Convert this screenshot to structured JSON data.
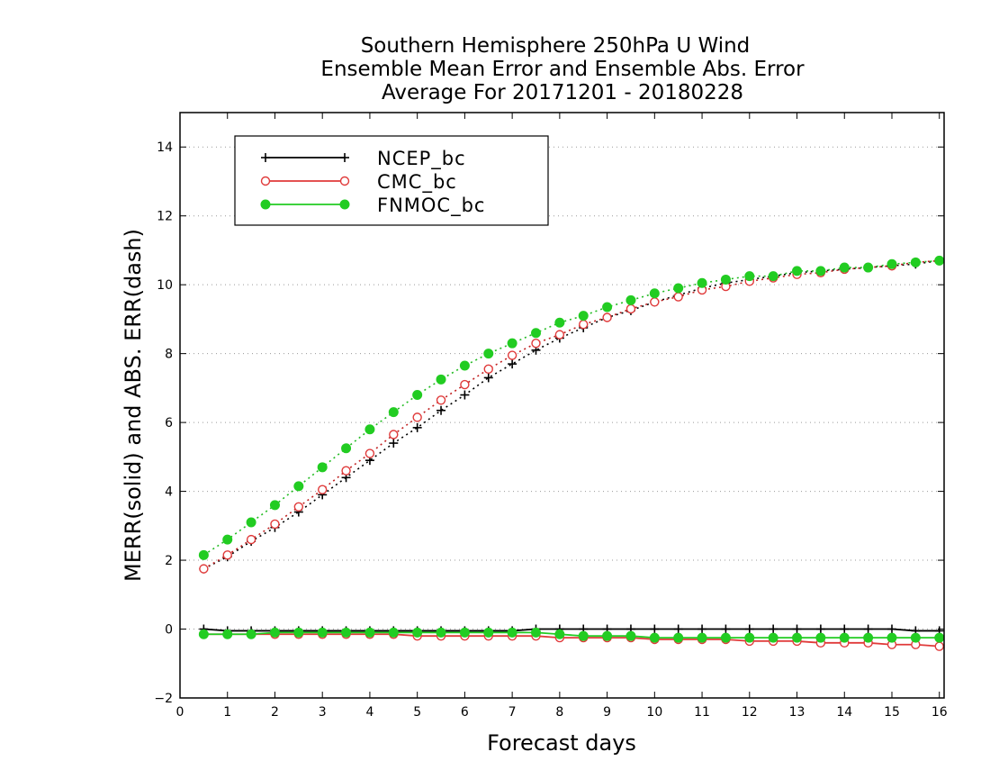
{
  "chart_data": {
    "type": "line",
    "title_lines": [
      "Southern Hemisphere 250hPa U Wind",
      "Ensemble Mean Error and Ensemble Abs. Error",
      "Average For 20171201 - 20180228"
    ],
    "xlabel": "Forecast days",
    "ylabel": "MERR(solid) and ABS. ERR(dash)",
    "xlim": [
      0,
      16.1
    ],
    "ylim": [
      -2,
      15
    ],
    "xticks": [
      0,
      1,
      2,
      3,
      4,
      5,
      6,
      7,
      8,
      9,
      10,
      11,
      12,
      13,
      14,
      15,
      16
    ],
    "yticks": [
      -2,
      0,
      2,
      4,
      6,
      8,
      10,
      12,
      14
    ],
    "ytick_labels": [
      "−2",
      "0",
      "2",
      "4",
      "6",
      "8",
      "10",
      "12",
      "14"
    ],
    "grid": true,
    "legend_position": "top-left",
    "x": [
      0.5,
      1,
      1.5,
      2,
      2.5,
      3,
      3.5,
      4,
      4.5,
      5,
      5.5,
      6,
      6.5,
      7,
      7.5,
      8,
      8.5,
      9,
      9.5,
      10,
      10.5,
      11,
      11.5,
      12,
      12.5,
      13,
      13.5,
      14,
      14.5,
      15,
      15.5,
      16
    ],
    "series": [
      {
        "name": "NCEP_bc",
        "color": "#000000",
        "marker": "plus",
        "abs_error": [
          1.75,
          2.1,
          2.55,
          2.95,
          3.4,
          3.9,
          4.4,
          4.9,
          5.4,
          5.85,
          6.35,
          6.8,
          7.3,
          7.7,
          8.1,
          8.45,
          8.75,
          9.05,
          9.25,
          9.5,
          9.7,
          9.9,
          10.05,
          10.15,
          10.25,
          10.35,
          10.4,
          10.45,
          10.5,
          10.55,
          10.6,
          10.7
        ],
        "mean_error": [
          0.0,
          -0.05,
          -0.05,
          -0.05,
          -0.05,
          -0.05,
          -0.05,
          -0.05,
          -0.05,
          -0.05,
          -0.05,
          -0.05,
          -0.05,
          -0.05,
          0.0,
          0.0,
          0.0,
          0.0,
          0.0,
          0.0,
          0.0,
          0.0,
          0.0,
          0.0,
          0.0,
          0.0,
          0.0,
          0.0,
          0.0,
          0.0,
          -0.05,
          -0.05
        ]
      },
      {
        "name": "CMC_bc",
        "color": "#e03a3a",
        "marker": "open-circle",
        "abs_error": [
          1.75,
          2.15,
          2.6,
          3.05,
          3.55,
          4.05,
          4.6,
          5.1,
          5.65,
          6.15,
          6.65,
          7.1,
          7.55,
          7.95,
          8.3,
          8.55,
          8.85,
          9.05,
          9.3,
          9.5,
          9.65,
          9.85,
          9.95,
          10.1,
          10.2,
          10.3,
          10.35,
          10.45,
          10.5,
          10.55,
          10.65,
          10.7
        ],
        "mean_error": [
          -0.15,
          -0.15,
          -0.15,
          -0.15,
          -0.15,
          -0.15,
          -0.15,
          -0.15,
          -0.15,
          -0.2,
          -0.2,
          -0.2,
          -0.2,
          -0.2,
          -0.2,
          -0.25,
          -0.25,
          -0.25,
          -0.25,
          -0.3,
          -0.3,
          -0.3,
          -0.3,
          -0.35,
          -0.35,
          -0.35,
          -0.4,
          -0.4,
          -0.4,
          -0.45,
          -0.45,
          -0.5
        ]
      },
      {
        "name": "FNMOC_bc",
        "color": "#22cc22",
        "marker": "filled-circle",
        "abs_error": [
          2.15,
          2.6,
          3.1,
          3.6,
          4.15,
          4.7,
          5.25,
          5.8,
          6.3,
          6.8,
          7.25,
          7.65,
          8.0,
          8.3,
          8.6,
          8.9,
          9.1,
          9.35,
          9.55,
          9.75,
          9.9,
          10.05,
          10.15,
          10.25,
          10.25,
          10.4,
          10.4,
          10.5,
          10.5,
          10.6,
          10.65,
          10.7
        ],
        "mean_error": [
          -0.15,
          -0.15,
          -0.15,
          -0.1,
          -0.1,
          -0.1,
          -0.1,
          -0.1,
          -0.1,
          -0.1,
          -0.1,
          -0.1,
          -0.1,
          -0.1,
          -0.1,
          -0.15,
          -0.2,
          -0.2,
          -0.2,
          -0.25,
          -0.25,
          -0.25,
          -0.25,
          -0.25,
          -0.25,
          -0.25,
          -0.25,
          -0.25,
          -0.25,
          -0.25,
          -0.25,
          -0.25
        ]
      }
    ]
  }
}
